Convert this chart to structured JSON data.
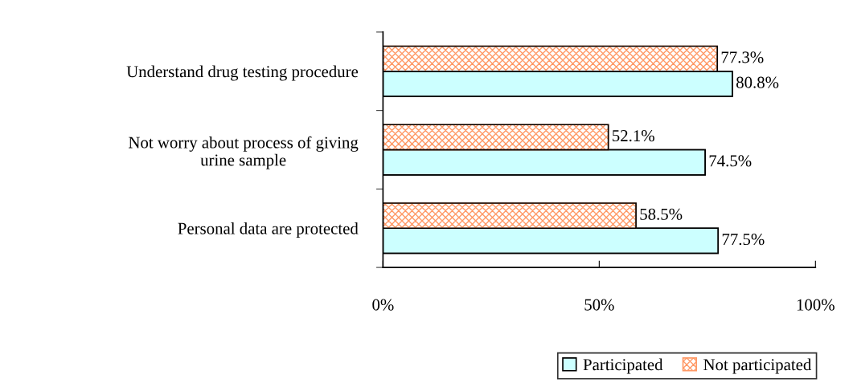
{
  "chart_data": {
    "type": "bar",
    "orientation": "horizontal",
    "categories": [
      "Understand drug testing procedure",
      "Not worry about process of giving\nurine sample",
      "Personal data are protected"
    ],
    "series": [
      {
        "name": "Participated",
        "color": "#ccffff",
        "values": [
          80.8,
          74.5,
          77.5
        ],
        "value_labels": [
          "80.8%",
          "74.5%",
          "77.5%"
        ]
      },
      {
        "name": "Not participated",
        "color": "#ff9966",
        "values": [
          77.3,
          52.1,
          58.5
        ],
        "value_labels": [
          "77.3%",
          "52.1%",
          "58.5%"
        ]
      }
    ],
    "xlim": [
      0,
      100
    ],
    "xticks": [
      {
        "value": 0,
        "label": "0%"
      },
      {
        "value": 50,
        "label": "50%"
      },
      {
        "value": 100,
        "label": "100%"
      }
    ],
    "grid": false,
    "legend": "bottom right"
  }
}
